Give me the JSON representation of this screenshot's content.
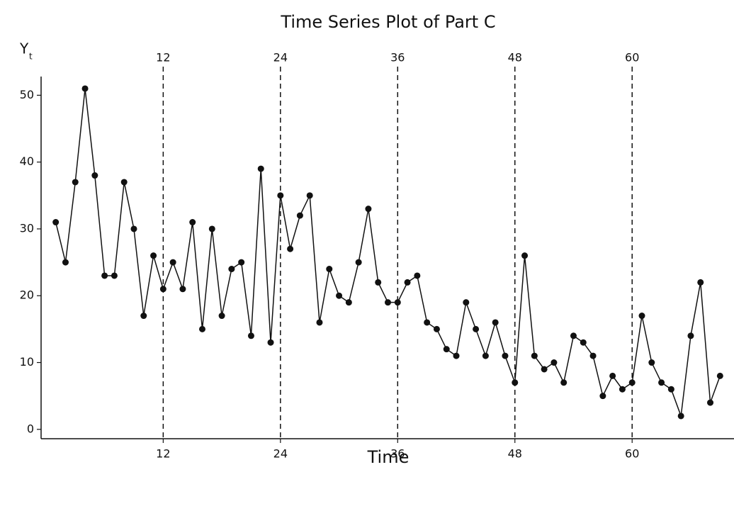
{
  "chart_data": {
    "type": "line",
    "title": "Time Series Plot of Part C",
    "x_label": "Time",
    "y_label": "Y",
    "y_label_subscript": "t",
    "x": [
      1,
      2,
      3,
      4,
      5,
      6,
      7,
      8,
      9,
      10,
      11,
      12,
      13,
      14,
      15,
      16,
      17,
      18,
      19,
      20,
      21,
      22,
      23,
      24,
      25,
      26,
      27,
      28,
      29,
      30,
      31,
      32,
      33,
      34,
      35,
      36,
      37,
      38,
      39,
      40,
      41,
      42,
      43,
      44,
      45,
      46,
      47,
      48,
      49,
      50,
      51,
      52,
      53,
      54,
      55,
      56,
      57,
      58,
      59,
      60,
      61,
      62,
      63,
      64,
      65,
      66,
      67,
      68,
      69
    ],
    "series": [
      {
        "name": "Yt",
        "color": "#111111",
        "values": [
          31,
          25,
          37,
          51,
          38,
          23,
          23,
          37,
          30,
          17,
          26,
          21,
          25,
          21,
          31,
          15,
          30,
          17,
          24,
          25,
          14,
          39,
          13,
          35,
          27,
          32,
          35,
          16,
          24,
          20,
          19,
          25,
          33,
          22,
          19,
          19,
          22,
          23,
          16,
          15,
          12,
          11,
          19,
          15,
          11,
          16,
          11,
          7,
          26,
          11,
          9,
          10,
          7,
          14,
          13,
          11,
          5,
          8,
          6,
          7,
          17,
          10,
          7,
          6,
          2,
          14,
          22,
          4,
          8
        ]
      }
    ],
    "xlim": [
      -0.5,
      70.5
    ],
    "xticks": [
      12,
      24,
      36,
      48,
      60
    ],
    "ylim": [
      -1.4,
      52.8
    ],
    "yticks": [
      0,
      10,
      20,
      30,
      40,
      50
    ],
    "period_lines": true
  }
}
